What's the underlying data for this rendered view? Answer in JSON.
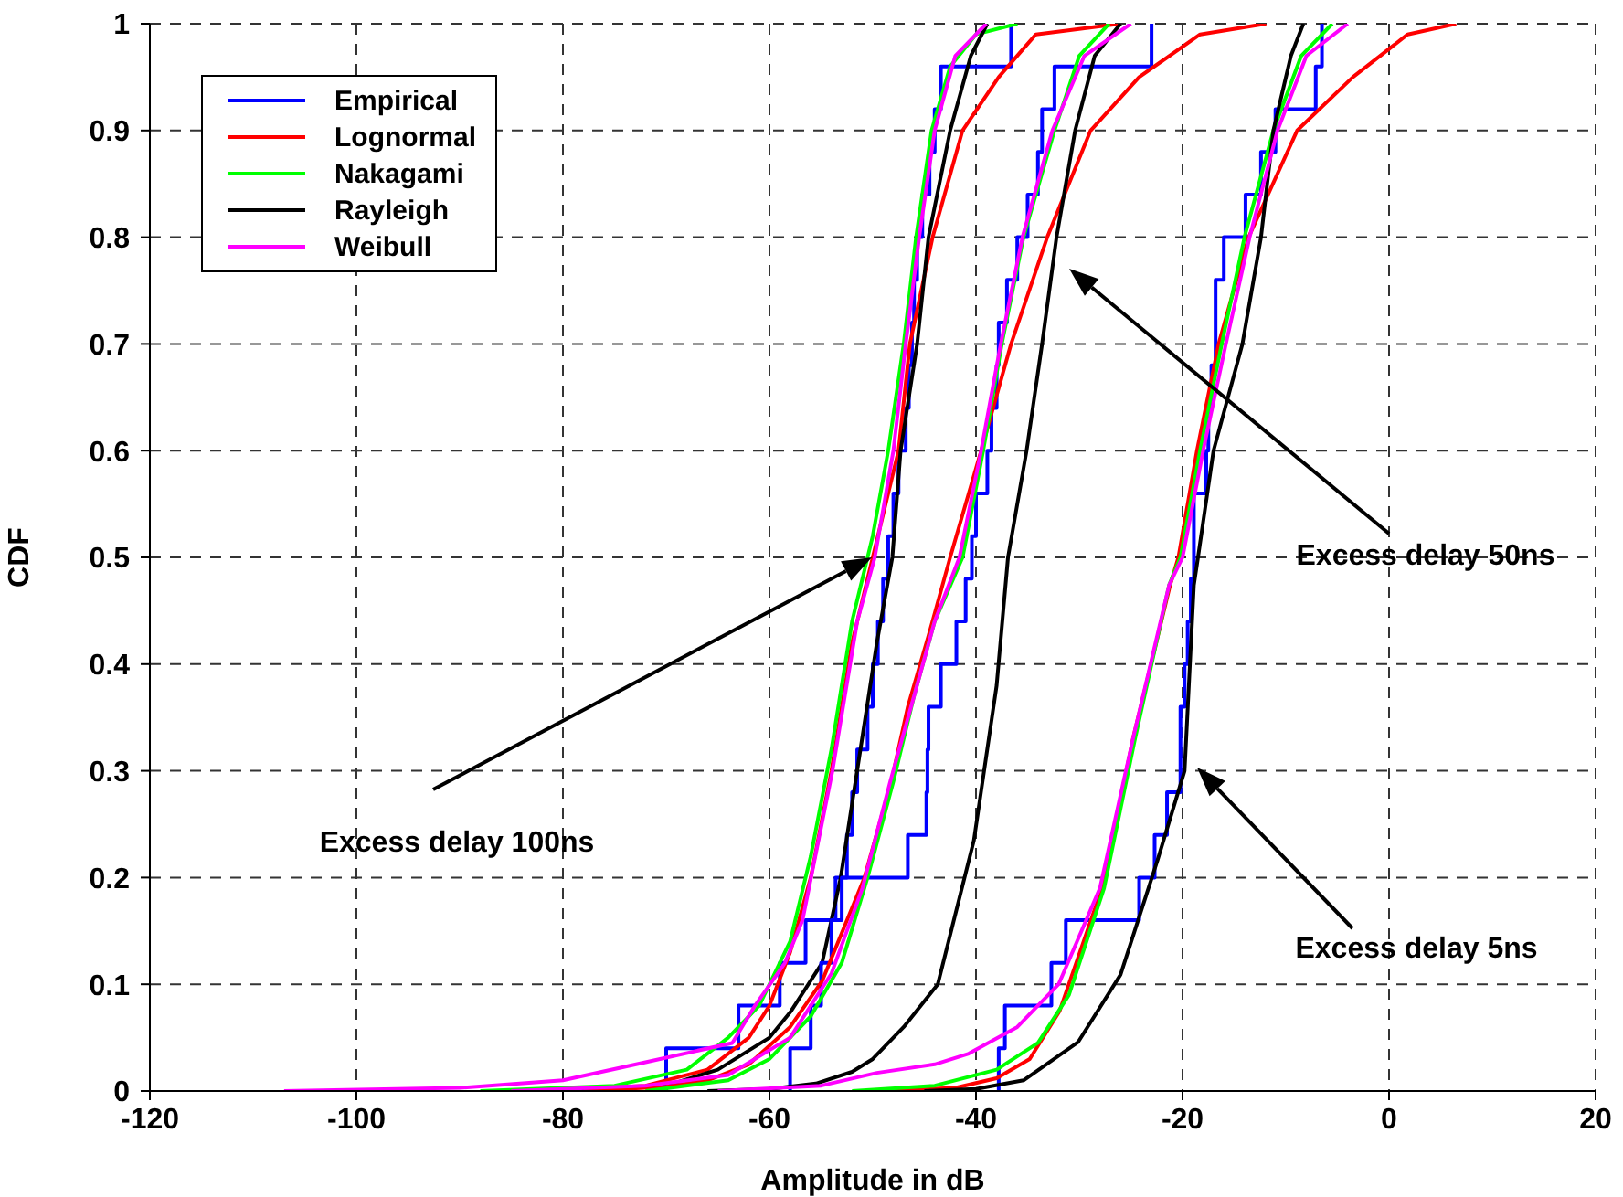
{
  "chart_data": {
    "type": "line",
    "xlabel": "Amplitude in dB",
    "ylabel": "CDF",
    "xlim": [
      -120,
      20
    ],
    "xticks": [
      -120,
      -100,
      -80,
      -60,
      -40,
      -20,
      0,
      20
    ],
    "ylim": [
      0,
      1
    ],
    "yticks": [
      0,
      0.1,
      0.2,
      0.3,
      0.4,
      0.5,
      0.6,
      0.7,
      0.8,
      0.9,
      1
    ],
    "grid": true,
    "legend": "top left",
    "marker": "none",
    "line_style": "solid",
    "annotations": [
      "Excess delay 100ns",
      "Excess delay 50ns",
      "Excess delay 5ns"
    ],
    "series": [
      {
        "name": "Empirical",
        "type": "step",
        "color": "#0000ff",
        "x": [
          -70,
          -70,
          -63,
          -59,
          -56.5,
          -53.6,
          -52.5,
          -52,
          -51.5,
          -50.5,
          -50,
          -49.5,
          -49,
          -48.5,
          -48,
          -47.5,
          -46.8,
          -46.5,
          -46.2,
          -46,
          -45.7,
          -45.2,
          -44.5,
          -44,
          -43.4,
          -36.6
        ],
        "values": [
          0,
          0.04,
          0.08,
          0.12,
          0.16,
          0.2,
          0.24,
          0.28,
          0.32,
          0.36,
          0.4,
          0.44,
          0.48,
          0.52,
          0.56,
          0.6,
          0.64,
          0.68,
          0.72,
          0.76,
          0.8,
          0.84,
          0.88,
          0.92,
          0.96,
          1
        ]
      },
      {
        "name": "Lognormal",
        "color": "#ff0000",
        "x": [
          -82,
          -72,
          -66,
          -62,
          -60,
          -58,
          -56,
          -54,
          -52,
          -50,
          -48.5,
          -47.5,
          -46.4,
          -44.2,
          -41.3,
          -37.8,
          -34.2,
          -26
        ],
        "values": [
          0,
          0.005,
          0.02,
          0.05,
          0.08,
          0.13,
          0.2,
          0.3,
          0.42,
          0.5,
          0.56,
          0.6,
          0.7,
          0.8,
          0.9,
          0.95,
          0.99,
          1
        ]
      },
      {
        "name": "Nakagami",
        "color": "#00ff00",
        "x": [
          -88,
          -75,
          -68,
          -64,
          -61,
          -58,
          -56,
          -54,
          -52,
          -50,
          -48.5,
          -47,
          -45.8,
          -44.3,
          -42.5,
          -40,
          -36
        ],
        "values": [
          0,
          0.005,
          0.02,
          0.05,
          0.08,
          0.14,
          0.22,
          0.32,
          0.44,
          0.52,
          0.6,
          0.7,
          0.8,
          0.9,
          0.96,
          0.99,
          1
        ]
      },
      {
        "name": "Rayleigh",
        "color": "#000000",
        "x": [
          -82,
          -70,
          -65,
          -60,
          -57.9,
          -54.9,
          -53.1,
          -49.6,
          -48.1,
          -47.3,
          -45.7,
          -44.6,
          -42.5,
          -40.5,
          -38.9
        ],
        "values": [
          0,
          0.005,
          0.02,
          0.05,
          0.075,
          0.12,
          0.2,
          0.42,
          0.5,
          0.6,
          0.7,
          0.8,
          0.9,
          0.97,
          1
        ]
      },
      {
        "name": "Weibull",
        "color": "#ff00ff",
        "x": [
          -107,
          -90,
          -80,
          -72,
          -63.6,
          -61.4,
          -58.5,
          -56.8,
          -53.9,
          -51.5,
          -49.8,
          -48,
          -46.8,
          -45.5,
          -44,
          -42,
          -39
        ],
        "values": [
          0,
          0.003,
          0.01,
          0.027,
          0.045,
          0.08,
          0.12,
          0.16,
          0.3,
          0.44,
          0.5,
          0.6,
          0.7,
          0.8,
          0.9,
          0.97,
          1
        ]
      },
      {
        "type": "step",
        "color": "#0000ff",
        "x": [
          -58,
          -58,
          -56,
          -55,
          -54,
          -53,
          -46.6,
          -44.8,
          -44.7,
          -44.6,
          -43.4,
          -41.9,
          -41,
          -40.4,
          -40,
          -38.9,
          -38.5,
          -38,
          -37.8,
          -37,
          -36,
          -35,
          -34,
          -33.6,
          -32.4,
          -23
        ],
        "values": [
          0,
          0.04,
          0.08,
          0.12,
          0.16,
          0.2,
          0.24,
          0.28,
          0.32,
          0.36,
          0.4,
          0.44,
          0.48,
          0.52,
          0.56,
          0.6,
          0.64,
          0.68,
          0.72,
          0.76,
          0.8,
          0.84,
          0.88,
          0.92,
          0.96,
          1
        ]
      },
      {
        "color": "#ff0000",
        "x": [
          -78,
          -70,
          -66,
          -62,
          -58,
          -54.9,
          -50.8,
          -48.2,
          -46.6,
          -44.5,
          -42.5,
          -39.5,
          -36.6,
          -33.1,
          -28.9,
          -24.2,
          -18.3,
          -11.9
        ],
        "values": [
          0,
          0.004,
          0.01,
          0.025,
          0.06,
          0.103,
          0.2,
          0.29,
          0.36,
          0.43,
          0.5,
          0.6,
          0.7,
          0.8,
          0.9,
          0.95,
          0.99,
          1
        ]
      },
      {
        "color": "#00ff00",
        "x": [
          -72,
          -64,
          -60,
          -56,
          -53,
          -50.5,
          -48,
          -46,
          -44,
          -41.3,
          -39.3,
          -37.5,
          -35.4,
          -32.4,
          -30,
          -27.1
        ],
        "values": [
          0,
          0.01,
          0.03,
          0.07,
          0.12,
          0.2,
          0.29,
          0.37,
          0.44,
          0.5,
          0.6,
          0.7,
          0.8,
          0.9,
          0.97,
          1
        ]
      },
      {
        "color": "#000000",
        "x": [
          -66,
          -60,
          -55.5,
          -52,
          -50,
          -47,
          -43.7,
          -40.2,
          -38,
          -36.9,
          -35.1,
          -33.6,
          -32.2,
          -30.4,
          -28.5,
          -26
        ],
        "values": [
          0,
          0.002,
          0.007,
          0.018,
          0.03,
          0.06,
          0.1,
          0.235,
          0.38,
          0.5,
          0.6,
          0.7,
          0.8,
          0.9,
          0.97,
          1
        ]
      },
      {
        "color": "#ff00ff",
        "x": [
          -85,
          -72,
          -64,
          -58,
          -54,
          -51,
          -48.3,
          -46,
          -44,
          -41.6,
          -39.5,
          -37.6,
          -35.5,
          -32.6,
          -29.5,
          -25
        ],
        "values": [
          0,
          0.005,
          0.015,
          0.05,
          0.11,
          0.19,
          0.29,
          0.37,
          0.44,
          0.5,
          0.6,
          0.7,
          0.8,
          0.9,
          0.97,
          1
        ]
      },
      {
        "type": "step",
        "color": "#0000ff",
        "x": [
          -37.8,
          -37.8,
          -37.2,
          -32.7,
          -31.3,
          -24.2,
          -22.7,
          -21.5,
          -20.2,
          -20.2,
          -19.8,
          -19.5,
          -19.2,
          -18.9,
          -18.9,
          -17.7,
          -17.5,
          -17.2,
          -16.8,
          -16.8,
          -16,
          -13.9,
          -12.4,
          -11,
          -7.1,
          -6.5
        ],
        "values": [
          0,
          0.04,
          0.08,
          0.12,
          0.16,
          0.2,
          0.24,
          0.28,
          0.32,
          0.36,
          0.4,
          0.44,
          0.48,
          0.52,
          0.56,
          0.6,
          0.64,
          0.68,
          0.72,
          0.76,
          0.8,
          0.84,
          0.88,
          0.92,
          0.96,
          1
        ]
      },
      {
        "color": "#ff0000",
        "x": [
          -50,
          -42,
          -38,
          -34.8,
          -31.9,
          -27.8,
          -24.8,
          -21.2,
          -20.4,
          -18.6,
          -16.5,
          -13.6,
          -8.9,
          -3.5,
          1.8,
          6.5
        ],
        "values": [
          0,
          0.003,
          0.012,
          0.03,
          0.075,
          0.19,
          0.33,
          0.474,
          0.5,
          0.6,
          0.7,
          0.8,
          0.9,
          0.95,
          0.99,
          1
        ]
      },
      {
        "color": "#00ff00",
        "x": [
          -52,
          -44,
          -38,
          -34,
          -31,
          -27.6,
          -24.6,
          -21.3,
          -20.2,
          -18.3,
          -16.2,
          -14,
          -11.2,
          -8.5,
          -5.5
        ],
        "values": [
          0,
          0.005,
          0.02,
          0.045,
          0.09,
          0.19,
          0.33,
          0.474,
          0.5,
          0.6,
          0.7,
          0.8,
          0.9,
          0.97,
          1
        ]
      },
      {
        "color": "#000000",
        "x": [
          -45,
          -40,
          -35.4,
          -30.1,
          -26,
          -22.4,
          -19.8,
          -18.9,
          -18.5,
          -17,
          -14.2,
          -12.4,
          -11.2,
          -9.5,
          -8.3
        ],
        "values": [
          0,
          0.002,
          0.01,
          0.046,
          0.109,
          0.217,
          0.3,
          0.474,
          0.5,
          0.6,
          0.7,
          0.8,
          0.9,
          0.97,
          1
        ]
      },
      {
        "color": "#ff00ff",
        "x": [
          -65,
          -55,
          -49.6,
          -44,
          -40.7,
          -36,
          -32,
          -28,
          -24.8,
          -21.3,
          -20,
          -18,
          -15.8,
          -13.5,
          -10.8,
          -8,
          -4
        ],
        "values": [
          0,
          0.005,
          0.017,
          0.025,
          0.035,
          0.06,
          0.1,
          0.19,
          0.33,
          0.474,
          0.5,
          0.6,
          0.7,
          0.8,
          0.9,
          0.97,
          1
        ]
      }
    ]
  }
}
